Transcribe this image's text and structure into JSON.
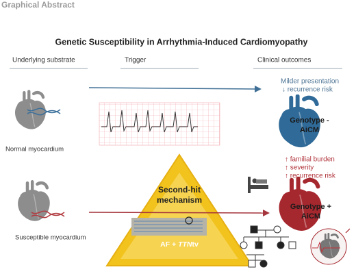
{
  "header": {
    "title": "Graphical Abstract"
  },
  "main_title": "Genetic Susceptibility in Arrhythmia-Induced Cardiomyopathy",
  "columns": [
    "Underlying substrate",
    "Trigger",
    "Clinical outcomes"
  ],
  "substrates": [
    "Normal myocardium",
    "Susceptible myocardium"
  ],
  "outcome_negative": {
    "notes": [
      "Milder presentation",
      "↓ recurrence risk"
    ],
    "label": [
      "Genotype -",
      "AiCM"
    ]
  },
  "outcome_positive": {
    "notes": [
      "↑ familial burden",
      "↑ severity",
      "↑ recurrence risk"
    ],
    "label": [
      "Genotype +",
      "AiCM"
    ]
  },
  "mechanism": {
    "title": [
      "Second-hit",
      "mechanism"
    ],
    "trigger": {
      "prefix": "AF + ",
      "gene": "TTN",
      "suffix": "tv"
    }
  }
}
